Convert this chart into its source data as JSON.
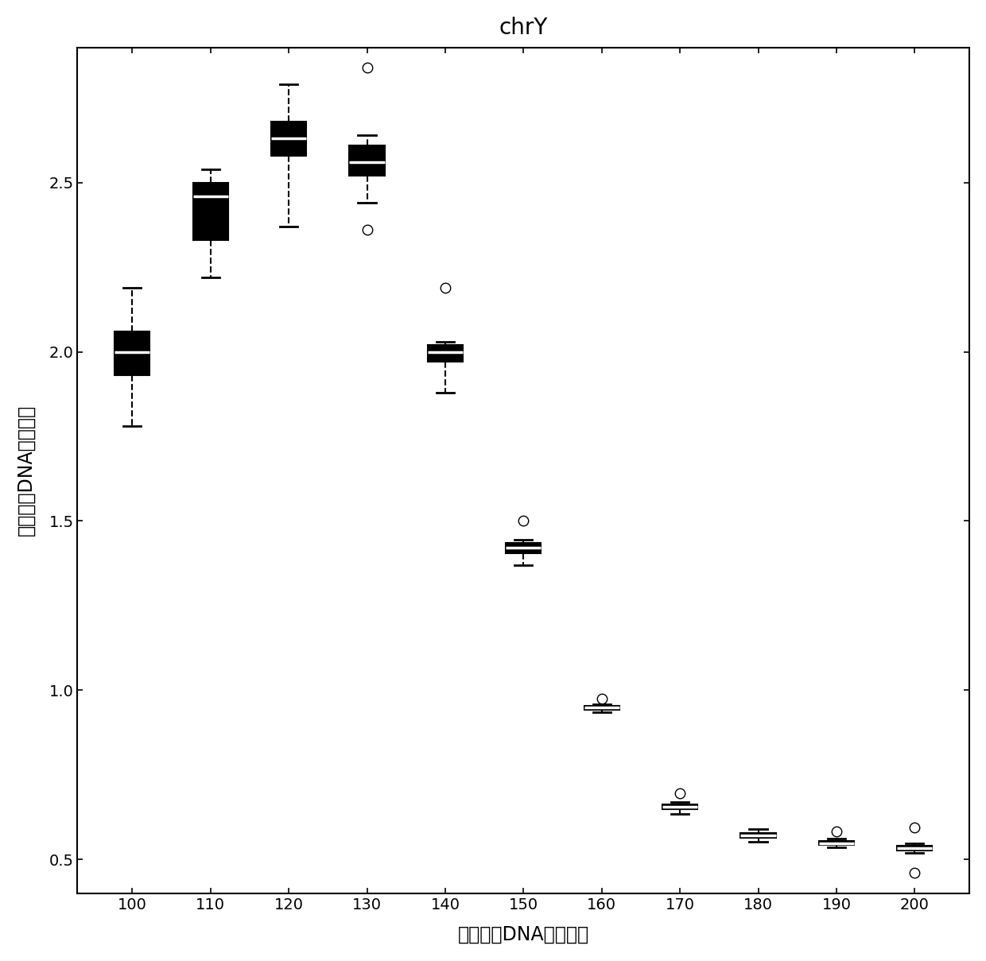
{
  "title": "chrY",
  "xlabel": "胎儿游离DNA读长区间",
  "ylabel": "胎儿游离DNA提高倍数",
  "box_data": {
    "100": {
      "whislo": 1.78,
      "q1": 1.93,
      "med": 2.0,
      "q3": 2.06,
      "whishi": 2.19,
      "fliers": []
    },
    "110": {
      "whislo": 2.22,
      "q1": 2.33,
      "med": 2.46,
      "q3": 2.5,
      "whishi": 2.54,
      "fliers": []
    },
    "120": {
      "whislo": 2.37,
      "q1": 2.58,
      "med": 2.63,
      "q3": 2.68,
      "whishi": 2.79,
      "fliers": []
    },
    "130": {
      "whislo": 2.44,
      "q1": 2.52,
      "med": 2.56,
      "q3": 2.61,
      "whishi": 2.64,
      "fliers": [
        2.84,
        2.36
      ]
    },
    "140": {
      "whislo": 1.88,
      "q1": 1.97,
      "med": 2.0,
      "q3": 2.02,
      "whishi": 2.03,
      "fliers": [
        2.19
      ]
    },
    "150": {
      "whislo": 1.37,
      "q1": 1.405,
      "med": 1.42,
      "q3": 1.435,
      "whishi": 1.445,
      "fliers": [
        1.5
      ]
    },
    "160": {
      "whislo": 0.935,
      "q1": 0.943,
      "med": 0.948,
      "q3": 0.953,
      "whishi": 0.958,
      "fliers": [
        0.975
      ]
    },
    "170": {
      "whislo": 0.635,
      "q1": 0.648,
      "med": 0.655,
      "q3": 0.663,
      "whishi": 0.67,
      "fliers": [
        0.695
      ]
    },
    "180": {
      "whislo": 0.553,
      "q1": 0.563,
      "med": 0.57,
      "q3": 0.578,
      "whishi": 0.59,
      "fliers": []
    },
    "190": {
      "whislo": 0.535,
      "q1": 0.542,
      "med": 0.548,
      "q3": 0.555,
      "whishi": 0.562,
      "fliers": [
        0.583
      ]
    },
    "200": {
      "whislo": 0.518,
      "q1": 0.527,
      "med": 0.533,
      "q3": 0.54,
      "whishi": 0.546,
      "fliers": [
        0.46,
        0.595
      ]
    }
  },
  "outliers_only": {},
  "ylim": [
    0.4,
    2.9
  ],
  "yticks": [
    0.5,
    1.0,
    1.5,
    2.0,
    2.5
  ],
  "xticks": [
    100,
    110,
    120,
    130,
    140,
    150,
    160,
    170,
    180,
    190,
    200
  ],
  "background_color": "#ffffff",
  "title_fontsize": 20,
  "label_fontsize": 17,
  "tick_fontsize": 14
}
